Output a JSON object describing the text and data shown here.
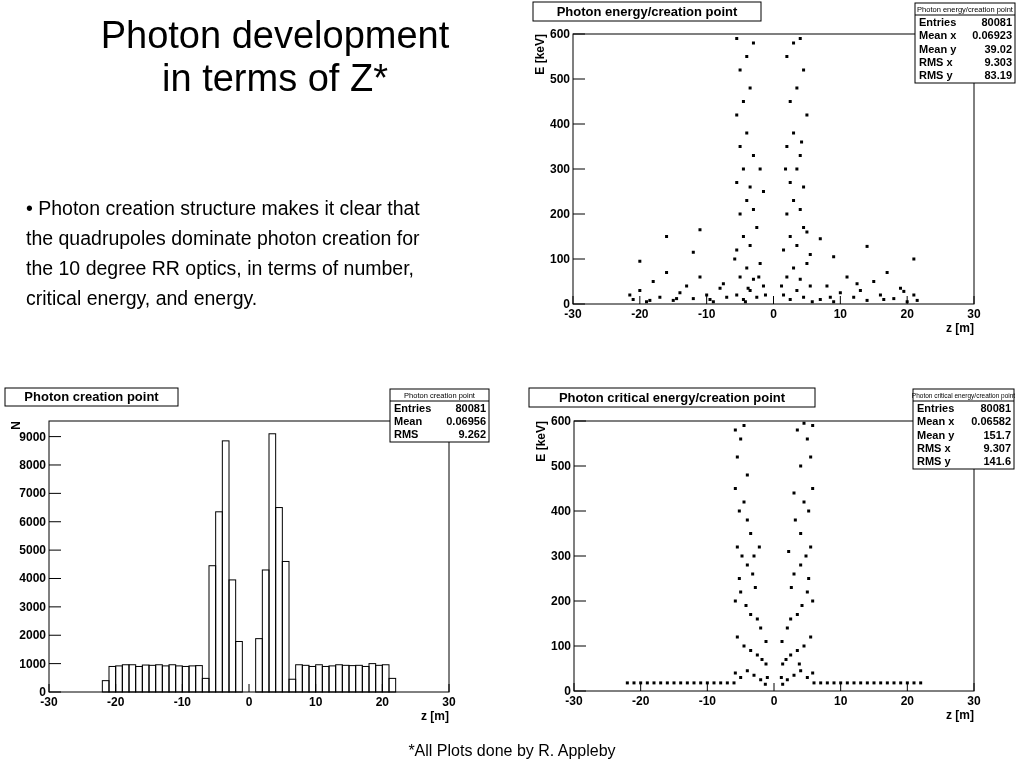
{
  "chart_data": [
    {
      "type": "other",
      "title": "Photon development in terms of Z*",
      "annotations": [
        "• Photon creation structure makes it clear that the quadrupoles dominate photon creation for the 10 degree RR optics, in terms of number, critical energy, and energy.",
        "*All Plots done by R. Appleby"
      ]
    },
    {
      "type": "scatter",
      "title": "Photon energy/creation point",
      "xlabel": "z [m]",
      "ylabel": "E [keV]",
      "marker": "square",
      "color": "#000000",
      "xlim": [
        -30,
        30
      ],
      "xticks": [
        -30,
        -20,
        -10,
        0,
        10,
        20,
        30
      ],
      "ylim": [
        0,
        600
      ],
      "yticks": [
        0,
        100,
        200,
        300,
        400,
        500,
        600
      ],
      "annotations": [
        "Photon energy/creation point",
        "Entries",
        "80081",
        "Mean x",
        "0.06923",
        "Mean y",
        "39.02",
        "RMS x",
        "9.303",
        "RMS y",
        "83.19"
      ],
      "x": [
        -21,
        -20,
        -19,
        -18,
        -17,
        -16,
        -15,
        -14,
        -13,
        -12,
        -11,
        -10,
        -9,
        -8,
        -7,
        -16,
        -12,
        -20,
        -11,
        -21.5,
        -18.5,
        -14.5,
        -9.5,
        -7.5,
        7,
        8,
        9,
        10,
        11,
        12,
        13,
        14,
        15,
        16,
        17,
        18,
        19,
        20,
        21,
        7,
        9,
        14,
        21,
        8.5,
        12.5,
        16.5,
        19.5,
        21.5,
        -5.5,
        -4.5,
        -3.5,
        -2.5,
        -1.5,
        -5,
        -4,
        -3,
        -2,
        -5.5,
        -4.5,
        -3.5,
        -2.5,
        -5,
        -4,
        -3,
        -5.5,
        -4.5,
        -3.5,
        -5,
        -4,
        -3,
        -5.5,
        -4.5,
        -3.5,
        -5,
        -4,
        -3,
        -5.5,
        -2,
        -1.5,
        -5.8,
        -2.2,
        -3.8,
        -1.2,
        -4.2,
        1.5,
        2.5,
        3.5,
        4.5,
        5.5,
        2,
        3,
        4,
        5,
        1.5,
        2.5,
        3.5,
        4.5,
        2,
        3,
        4,
        5,
        2.5,
        3.5,
        4.5,
        2,
        3,
        4,
        5,
        2.5,
        3.5,
        4.5,
        2,
        3,
        4,
        5.5,
        1.2,
        1.8,
        5.8,
        4.2
      ],
      "values": [
        10,
        30,
        5,
        50,
        15,
        70,
        8,
        25,
        40,
        12,
        60,
        20,
        5,
        35,
        15,
        150,
        115,
        95,
        165,
        20,
        8,
        12,
        10,
        45,
        10,
        40,
        5,
        25,
        60,
        15,
        30,
        8,
        50,
        20,
        70,
        12,
        35,
        5,
        20,
        145,
        105,
        128,
        100,
        15,
        45,
        10,
        28,
        8,
        20,
        10,
        30,
        15,
        40,
        60,
        80,
        55,
        90,
        120,
        150,
        130,
        170,
        200,
        230,
        210,
        270,
        300,
        260,
        350,
        380,
        330,
        420,
        450,
        480,
        520,
        550,
        580,
        590,
        300,
        250,
        100,
        60,
        35,
        20,
        5,
        20,
        10,
        30,
        15,
        40,
        60,
        80,
        55,
        90,
        120,
        150,
        130,
        170,
        200,
        230,
        210,
        160,
        270,
        300,
        260,
        350,
        380,
        330,
        420,
        450,
        480,
        520,
        550,
        580,
        590,
        110,
        40,
        300,
        5,
        360
      ]
    },
    {
      "type": "histogram",
      "title": "Photon creation point",
      "xlabel": "z [m]",
      "ylabel": "N",
      "color": "#000000",
      "xlim": [
        -30,
        30
      ],
      "xticks": [
        -30,
        -20,
        -10,
        0,
        10,
        20,
        30
      ],
      "ylim": [
        0,
        9550
      ],
      "yticks": [
        0,
        1000,
        2000,
        3000,
        4000,
        5000,
        6000,
        7000,
        8000,
        9000
      ],
      "annotations": [
        "Photon creation point",
        "Entries",
        "80081",
        "Mean",
        "0.06956",
        "RMS",
        "9.262"
      ],
      "bins": [
        -22,
        -21,
        -20,
        -19,
        -18,
        -17,
        -16,
        -15,
        -14,
        -13,
        -12,
        -11,
        -10,
        -9,
        -8,
        -7,
        -6,
        -5,
        -4,
        -3,
        -2,
        -1,
        0,
        1,
        2,
        3,
        4,
        5,
        6,
        7,
        8,
        9,
        10,
        11,
        12,
        13,
        14,
        15,
        16,
        17,
        18,
        19,
        20,
        21,
        22
      ],
      "values": [
        400,
        900,
        920,
        960,
        960,
        900,
        950,
        940,
        960,
        920,
        960,
        920,
        900,
        920,
        930,
        480,
        4450,
        6350,
        8850,
        3950,
        1780,
        0,
        0,
        1880,
        4300,
        9100,
        6500,
        4600,
        450,
        960,
        940,
        900,
        960,
        900,
        920,
        960,
        940,
        930,
        940,
        900,
        1000,
        940,
        960,
        480
      ]
    },
    {
      "type": "scatter",
      "title": "Photon critical energy/creation point",
      "xlabel": "z [m]",
      "ylabel": "E [keV]",
      "marker": "square",
      "color": "#000000",
      "xlim": [
        -30,
        30
      ],
      "xticks": [
        -30,
        -20,
        -10,
        0,
        10,
        20,
        30
      ],
      "ylim": [
        0,
        600
      ],
      "yticks": [
        0,
        100,
        200,
        300,
        400,
        500,
        600
      ],
      "annotations": [
        "Photon critical energy/creation point",
        "Entries",
        "80081",
        "Mean x",
        "0.06582",
        "Mean y",
        "151.7",
        "RMS x",
        "9.307",
        "RMS y",
        "141.6"
      ],
      "x": [
        -22,
        -21,
        -20,
        -19,
        -18,
        -17,
        -16,
        -15,
        -14,
        -13,
        -12,
        -11,
        -10,
        -9,
        -8,
        -7,
        -6,
        6,
        7,
        8,
        9,
        10,
        11,
        12,
        13,
        14,
        15,
        16,
        17,
        18,
        19,
        20,
        21,
        22,
        -5.8,
        -5.5,
        -5,
        -4.5,
        -5.8,
        -5.2,
        -4.5,
        -4,
        -3.5,
        -5.5,
        -4.8,
        -4,
        -3.2,
        -2.8,
        -5.8,
        -5,
        -4.2,
        -3.5,
        -2.5,
        -2,
        -5.5,
        -4.5,
        -3.5,
        -2.5,
        -1.8,
        -1.2,
        -5.8,
        -5,
        -4,
        -3,
        -2,
        -1.3,
        -2.2,
        -1.2,
        -1,
        -3,
        -4,
        -5.2,
        5.8,
        5.5,
        5,
        4.5,
        3.5,
        5.8,
        5.2,
        4.5,
        4,
        3.2,
        5.5,
        4.8,
        4,
        3,
        2.6,
        5.8,
        5,
        4.2,
        3.5,
        2.5,
        2,
        5.5,
        4.5,
        3.5,
        2.5,
        1.8,
        1.3,
        5.8,
        5,
        4,
        3,
        2,
        1.3,
        2.2,
        1.2,
        1.1,
        3,
        4,
        5.2,
        3.8
      ],
      "values": [
        18,
        18,
        18,
        18,
        18,
        18,
        18,
        18,
        18,
        18,
        18,
        18,
        18,
        18,
        18,
        18,
        18,
        18,
        18,
        18,
        18,
        18,
        18,
        18,
        18,
        18,
        18,
        18,
        18,
        18,
        18,
        18,
        18,
        18,
        580,
        520,
        560,
        590,
        450,
        400,
        420,
        380,
        350,
        320,
        300,
        280,
        260,
        230,
        200,
        220,
        190,
        170,
        160,
        140,
        120,
        100,
        90,
        80,
        70,
        60,
        40,
        30,
        45,
        35,
        25,
        15,
        320,
        110,
        30,
        300,
        480,
        250,
        590,
        520,
        560,
        595,
        580,
        450,
        400,
        420,
        500,
        380,
        320,
        300,
        280,
        260,
        230,
        200,
        220,
        190,
        170,
        160,
        140,
        120,
        100,
        90,
        80,
        70,
        60,
        40,
        30,
        45,
        35,
        25,
        15,
        310,
        110,
        30,
        440,
        350,
        250,
        60
      ]
    }
  ]
}
